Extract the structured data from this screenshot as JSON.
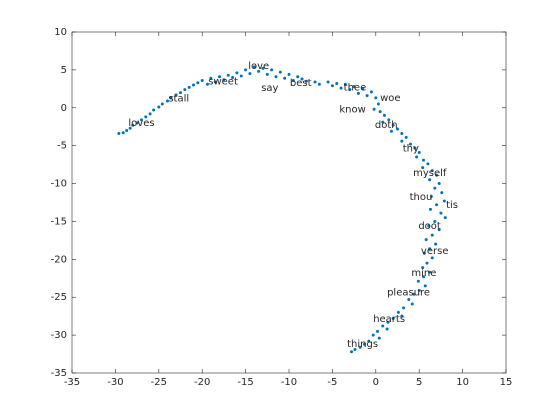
{
  "chart_data": {
    "type": "scatter",
    "color": "#0072bd",
    "xlim": [
      -35,
      15
    ],
    "ylim": [
      -35,
      10
    ],
    "xticks": [
      -35,
      -30,
      -25,
      -20,
      -15,
      -10,
      -5,
      0,
      5,
      10,
      15
    ],
    "yticks": [
      -35,
      -30,
      -25,
      -20,
      -15,
      -10,
      -5,
      0,
      5,
      10
    ],
    "x": [
      -29.6,
      -29.1,
      -28.7,
      -28.3,
      -28.0,
      -27.5,
      -27.0,
      -26.5,
      -26.0,
      -25.6,
      -25.0,
      -24.6,
      -24.0,
      -23.6,
      -23.0,
      -22.5,
      -22.0,
      -21.5,
      -21.0,
      -20.5,
      -20.0,
      -19.4,
      -19.0,
      -18.5,
      -18.0,
      -17.5,
      -17.0,
      -16.5,
      -16.0,
      -15.5,
      -15.0,
      -14.5,
      -14.0,
      -13.5,
      -13.0,
      -12.5,
      -12.0,
      -11.5,
      -11.0,
      -10.5,
      -10.0,
      -9.5,
      -9.0,
      -8.5,
      -8.0,
      -7.0,
      -6.5,
      -5.5,
      -5.0,
      -4.5,
      -4.0,
      -3.5,
      -3.0,
      -2.5,
      -2.0,
      -1.5,
      -1.0,
      -0.5,
      0.0,
      0.3,
      -0.2,
      0.5,
      1.0,
      1.5,
      0.8,
      2.0,
      2.5,
      1.8,
      3.0,
      3.5,
      3.0,
      4.0,
      4.5,
      5.0,
      4.7,
      5.5,
      6.0,
      5.4,
      6.5,
      7.0,
      6.2,
      7.3,
      6.8,
      7.6,
      6.4,
      7.9,
      7.0,
      6.3,
      7.5,
      8.0,
      6.8,
      6.1,
      7.3,
      6.5,
      5.8,
      6.9,
      6.2,
      5.6,
      6.5,
      5.9,
      5.4,
      6.2,
      5.5,
      4.9,
      5.7,
      5.0,
      4.4,
      3.8,
      4.2,
      3.2,
      2.6,
      3.0,
      2.0,
      1.4,
      0.8,
      1.3,
      0.2,
      -0.3,
      0.4,
      -0.8,
      -1.3,
      -1.8,
      -2.4,
      -2.8
    ],
    "values": [
      -3.4,
      -3.3,
      -3.0,
      -2.7,
      -2.3,
      -2.0,
      -1.6,
      -1.2,
      -0.8,
      -0.3,
      0.1,
      0.5,
      0.9,
      1.3,
      1.7,
      2.0,
      2.4,
      2.7,
      3.0,
      3.3,
      3.6,
      3.1,
      3.9,
      3.4,
      4.1,
      3.7,
      4.3,
      4.0,
      4.6,
      4.2,
      5.0,
      4.5,
      5.4,
      4.8,
      5.2,
      4.4,
      5.0,
      4.1,
      4.7,
      3.9,
      4.4,
      3.6,
      4.1,
      3.8,
      3.5,
      3.4,
      3.1,
      3.4,
      2.9,
      3.2,
      2.6,
      3.1,
      2.4,
      2.8,
      1.9,
      2.5,
      1.6,
      2.1,
      1.3,
      0.5,
      -0.2,
      -0.5,
      -1.0,
      -1.6,
      -1.9,
      -2.3,
      -2.8,
      -3.1,
      -3.4,
      -3.9,
      -4.4,
      -4.8,
      -5.3,
      -5.9,
      -6.5,
      -6.9,
      -7.4,
      -7.9,
      -8.3,
      -8.9,
      -9.5,
      -10.0,
      -10.6,
      -11.2,
      -11.7,
      -12.3,
      -12.8,
      -13.4,
      -13.9,
      -14.5,
      -15.0,
      -15.6,
      -16.1,
      -16.8,
      -17.4,
      -18.0,
      -18.6,
      -19.2,
      -19.8,
      -20.5,
      -21.1,
      -21.7,
      -22.3,
      -22.9,
      -23.5,
      -24.1,
      -24.6,
      -25.3,
      -25.9,
      -26.4,
      -27.0,
      -27.5,
      -27.8,
      -28.3,
      -28.8,
      -29.2,
      -29.5,
      -30.0,
      -30.4,
      -30.8,
      -31.2,
      -31.6,
      -31.9,
      -32.2
    ],
    "annotations": [
      {
        "text": "love",
        "x": -14.7,
        "y": 5.5
      },
      {
        "text": "sweet",
        "x": -19.3,
        "y": 3.5
      },
      {
        "text": "stall",
        "x": -23.9,
        "y": 1.2
      },
      {
        "text": "loves",
        "x": -28.5,
        "y": -2.0
      },
      {
        "text": "say",
        "x": -13.2,
        "y": 2.6
      },
      {
        "text": "best",
        "x": -9.9,
        "y": 3.3
      },
      {
        "text": "thee",
        "x": -3.7,
        "y": 2.7
      },
      {
        "text": "woe",
        "x": 0.5,
        "y": 1.3
      },
      {
        "text": "know",
        "x": -4.2,
        "y": -0.2
      },
      {
        "text": "doth",
        "x": -0.1,
        "y": -2.3
      },
      {
        "text": "thy",
        "x": 3.1,
        "y": -5.4
      },
      {
        "text": "myself",
        "x": 4.3,
        "y": -8.6
      },
      {
        "text": "thou",
        "x": 3.9,
        "y": -11.8
      },
      {
        "text": "tis",
        "x": 8.1,
        "y": -12.8
      },
      {
        "text": "doot",
        "x": 4.9,
        "y": -15.6
      },
      {
        "text": "verse",
        "x": 5.2,
        "y": -18.9
      },
      {
        "text": "mine",
        "x": 4.1,
        "y": -21.8
      },
      {
        "text": "pleasure",
        "x": 1.3,
        "y": -24.4
      },
      {
        "text": "hearts",
        "x": -0.3,
        "y": -27.9
      },
      {
        "text": "things",
        "x": -3.3,
        "y": -31.2
      }
    ]
  }
}
